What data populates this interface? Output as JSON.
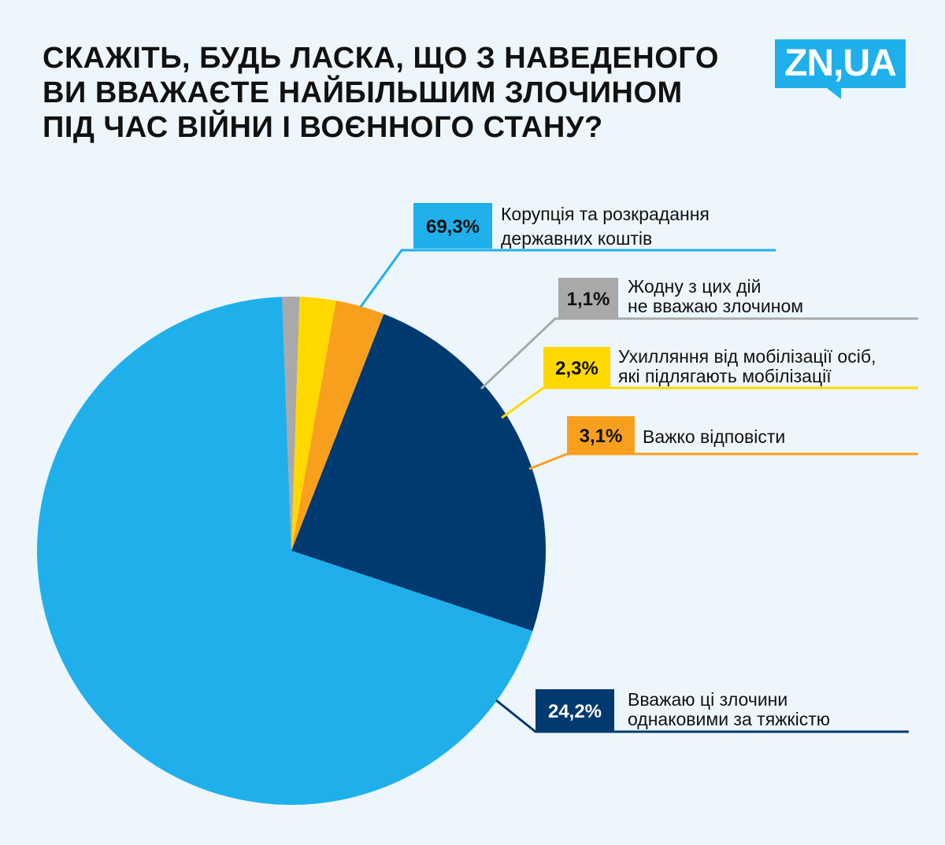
{
  "title_lines": [
    "СКАЖІТЬ, БУДЬ ЛАСКА, ЩО З НАВЕДЕНОГО",
    "ВИ ВВАЖАЄТЕ НАЙБІЛЬШИМ ЗЛОЧИНОМ",
    "ПІД ЧАС ВІЙНИ І ВОЄННОГО СТАНУ?"
  ],
  "logo": {
    "text": "ZN,UA",
    "color": "#1fb0ec"
  },
  "chart_data": {
    "type": "pie",
    "title": "СКАЖІТЬ, БУДЬ ЛАСКА, ЩО З НАВЕДЕНОГО ВИ ВВАЖАЄТЕ НАЙБІЛЬШИМ ЗЛОЧИНОМ ПІД ЧАС ВІЙНИ І ВОЄННОГО СТАНУ?",
    "unit": "%",
    "slices": [
      {
        "key": "corruption",
        "value": 69.3,
        "value_label": "69,3%",
        "label_lines": [
          "Корупція та розкрадання",
          "державних коштів"
        ],
        "color": "#1fb0ec",
        "text_color": "#111111"
      },
      {
        "key": "none",
        "value": 1.1,
        "value_label": "1,1%",
        "label_lines": [
          "Жодну з цих дій",
          "не вважаю злочином"
        ],
        "color": "#a9a9a9",
        "text_color": "#111111"
      },
      {
        "key": "evasion",
        "value": 2.3,
        "value_label": "2,3%",
        "label_lines": [
          "Ухилляння від мобілізації осіб,",
          "які підлягають мобілізації"
        ],
        "color": "#ffd800",
        "text_color": "#111111"
      },
      {
        "key": "hard",
        "value": 3.1,
        "value_label": "3,1%",
        "label_lines": [
          "Важко відповісти"
        ],
        "color": "#f8a01e",
        "text_color": "#111111"
      },
      {
        "key": "equal",
        "value": 24.2,
        "value_label": "24,2%",
        "label_lines": [
          "Вважаю ці злочини",
          "однаковими за тяжкістю"
        ],
        "color": "#003a70",
        "text_color": "#ffffff"
      }
    ],
    "start": "clockwise from lower-right"
  }
}
